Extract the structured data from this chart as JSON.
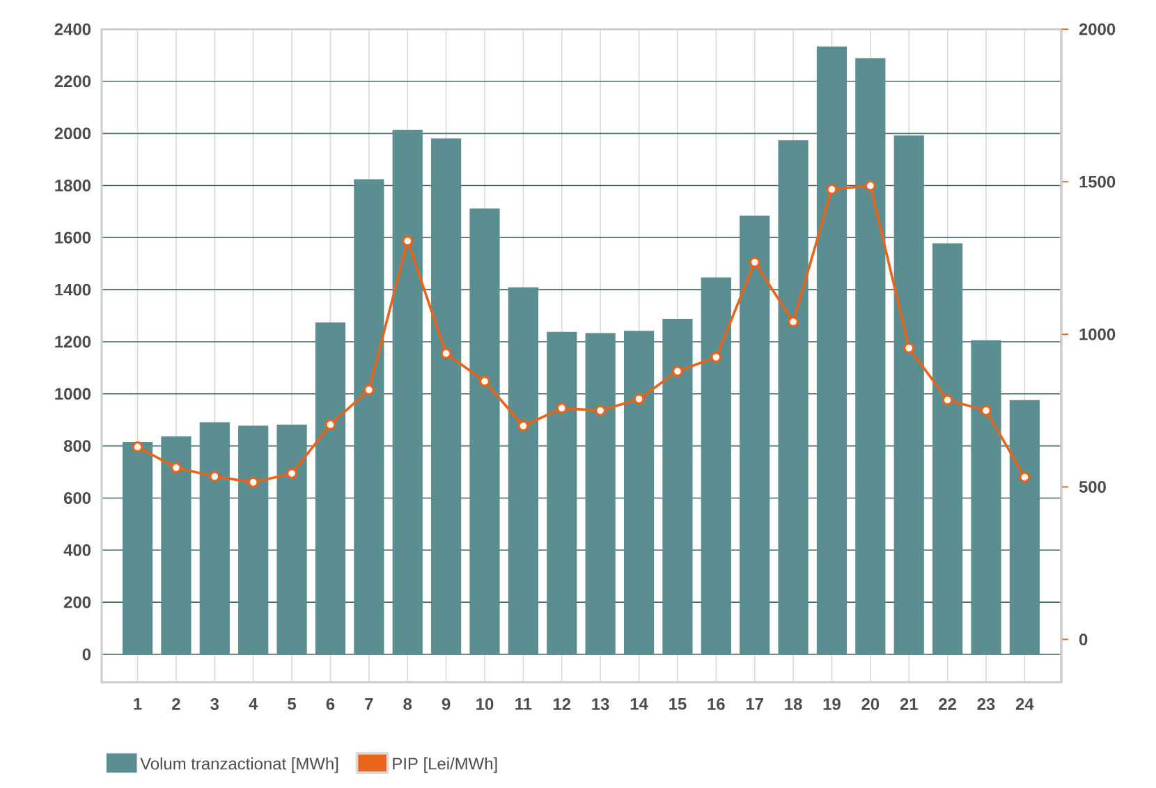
{
  "chart_data": {
    "type": "bar",
    "categories": [
      "1",
      "2",
      "3",
      "4",
      "5",
      "6",
      "7",
      "8",
      "9",
      "10",
      "11",
      "12",
      "13",
      "14",
      "15",
      "16",
      "17",
      "18",
      "19",
      "20",
      "21",
      "22",
      "23",
      "24"
    ],
    "series": [
      {
        "name": "Volum tranzactionat [MWh]",
        "color": "#5b8e91",
        "values": [
          815,
          837,
          891,
          878,
          882,
          1274,
          1824,
          2013,
          1981,
          1712,
          1409,
          1238,
          1233,
          1242,
          1288,
          1447,
          1684,
          1974,
          2334,
          2289,
          1992,
          1578,
          1206,
          976
        ]
      },
      {
        "name": "PIP [Lei/MWh]",
        "type": "line",
        "axis": "y2",
        "color": "#e8641a",
        "values": [
          631,
          563,
          534,
          515,
          544,
          704,
          818,
          1306,
          937,
          846,
          700,
          758,
          750,
          788,
          879,
          925,
          1236,
          1041,
          1475,
          1487,
          955,
          785,
          750,
          532
        ]
      }
    ],
    "ylim": [
      -107,
      2400
    ],
    "yticks": [
      0,
      200,
      400,
      600,
      800,
      1000,
      1200,
      1400,
      1600,
      1800,
      2000,
      2200,
      2400
    ],
    "y2lim": [
      -140,
      2000
    ],
    "y2ticks": [
      0,
      500,
      1000,
      1500,
      2000
    ],
    "grid": true,
    "legend": "bottom",
    "marker": "circle"
  }
}
